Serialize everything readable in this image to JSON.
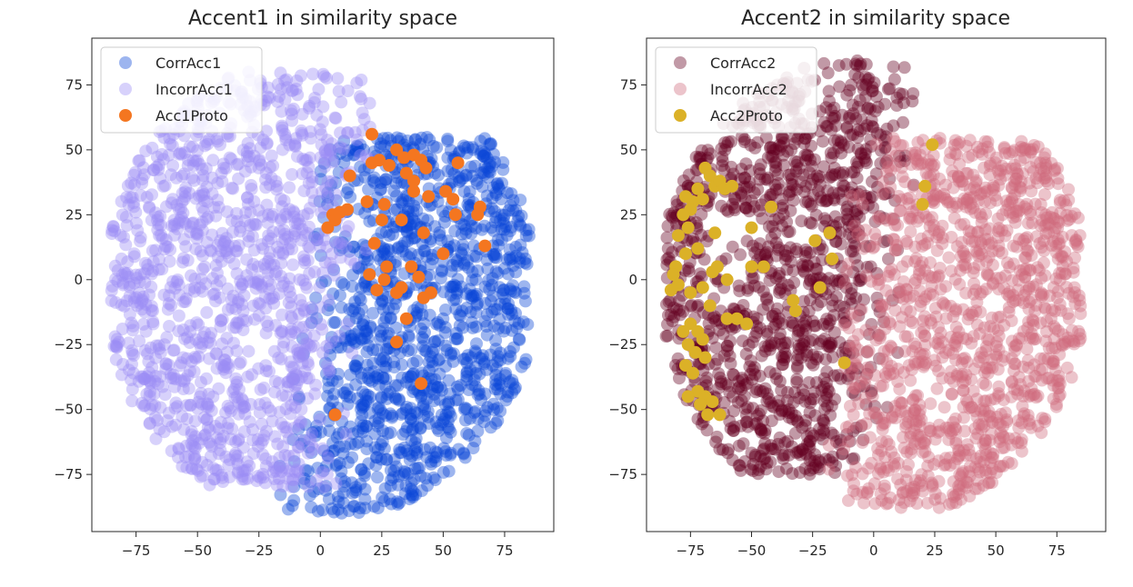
{
  "chart_data": [
    {
      "type": "scatter",
      "title": "Accent1 in similarity space",
      "xlabel": "",
      "ylabel": "",
      "xlim": [
        -93,
        95
      ],
      "ylim": [
        -97,
        93
      ],
      "xticks": [
        -75,
        -50,
        -25,
        0,
        25,
        50,
        75
      ],
      "yticks": [
        75,
        50,
        25,
        0,
        -25,
        -50,
        -75
      ],
      "xtick_labels": [
        "−75",
        "−50",
        "−25",
        "0",
        "25",
        "50",
        "75"
      ],
      "ytick_labels": [
        "75",
        "50",
        "25",
        "0",
        "−25",
        "−50",
        "−75"
      ],
      "grid": false,
      "legend_position": "top-left",
      "series": [
        {
          "name": "CorrAcc1",
          "color": "#0b46d8",
          "opacity": 0.4,
          "cloud": true,
          "region": {
            "x_range": [
              -25,
              85
            ],
            "y_range": [
              -90,
              55
            ],
            "side": "right",
            "split_x_at_y0": 5
          },
          "estimated_count": 1200
        },
        {
          "name": "IncorrAcc1",
          "color": "#9b8cf5",
          "opacity": 0.4,
          "cloud": true,
          "region": {
            "x_range": [
              -85,
              60
            ],
            "y_range": [
              -80,
              80
            ],
            "side": "left",
            "split_x_at_y0": 5
          },
          "estimated_count": 1200
        },
        {
          "name": "Acc1Proto",
          "color": "#f47620",
          "opacity": 1.0,
          "points": [
            [
              21,
              56
            ],
            [
              31,
              50
            ],
            [
              24,
              46
            ],
            [
              34,
              47
            ],
            [
              38,
              48
            ],
            [
              41,
              46
            ],
            [
              43,
              43
            ],
            [
              56,
              45
            ],
            [
              12,
              40
            ],
            [
              21,
              45
            ],
            [
              28,
              44
            ],
            [
              35,
              41
            ],
            [
              38,
              38
            ],
            [
              44,
              32
            ],
            [
              51,
              34
            ],
            [
              54,
              31
            ],
            [
              38,
              34
            ],
            [
              19,
              30
            ],
            [
              26,
              29
            ],
            [
              11,
              27
            ],
            [
              5,
              25
            ],
            [
              3,
              20
            ],
            [
              6,
              23
            ],
            [
              8,
              26
            ],
            [
              25,
              23
            ],
            [
              33,
              23
            ],
            [
              55,
              25
            ],
            [
              64,
              25
            ],
            [
              65,
              28
            ],
            [
              22,
              14
            ],
            [
              42,
              18
            ],
            [
              50,
              10
            ],
            [
              67,
              13
            ],
            [
              20,
              2
            ],
            [
              26,
              0
            ],
            [
              37,
              5
            ],
            [
              40,
              1
            ],
            [
              27,
              5
            ],
            [
              23,
              -4
            ],
            [
              31,
              -5
            ],
            [
              33,
              -3
            ],
            [
              42,
              -7
            ],
            [
              45,
              -5
            ],
            [
              35,
              -15
            ],
            [
              31,
              -24
            ],
            [
              41,
              -40
            ],
            [
              6,
              -52
            ]
          ]
        }
      ]
    },
    {
      "type": "scatter",
      "title": "Accent2 in similarity space",
      "xlabel": "",
      "ylabel": "",
      "xlim": [
        -93,
        95
      ],
      "ylim": [
        -97,
        93
      ],
      "xticks": [
        -75,
        -50,
        -25,
        0,
        25,
        50,
        75
      ],
      "yticks": [
        75,
        50,
        25,
        0,
        -25,
        -50,
        -75
      ],
      "xtick_labels": [
        "−75",
        "−50",
        "−25",
        "0",
        "25",
        "50",
        "75"
      ],
      "ytick_labels": [
        "75",
        "50",
        "25",
        "0",
        "−25",
        "−50",
        "−75"
      ],
      "grid": false,
      "legend_position": "top-left",
      "series": [
        {
          "name": "CorrAcc2",
          "color": "#650021",
          "opacity": 0.4,
          "cloud": true,
          "region": {
            "x_range": [
              -85,
              55
            ],
            "y_range": [
              -75,
              85
            ],
            "side": "left",
            "split_x_at_y0": 0
          },
          "estimated_count": 1200
        },
        {
          "name": "IncorrAcc2",
          "color": "#d06b7d",
          "opacity": 0.4,
          "cloud": true,
          "region": {
            "x_range": [
              -20,
              85
            ],
            "y_range": [
              -88,
              55
            ],
            "side": "right",
            "split_x_at_y0": 0
          },
          "estimated_count": 1200
        },
        {
          "name": "Acc2Proto",
          "color": "#dbb127",
          "opacity": 1.0,
          "points": [
            [
              -69,
              43
            ],
            [
              -67,
              40
            ],
            [
              -65,
              36
            ],
            [
              -63,
              38
            ],
            [
              -61,
              35
            ],
            [
              -58,
              36
            ],
            [
              -72,
              35
            ],
            [
              -74,
              30
            ],
            [
              -77,
              32
            ],
            [
              -75,
              27
            ],
            [
              -70,
              31
            ],
            [
              -78,
              25
            ],
            [
              -76,
              20
            ],
            [
              -80,
              17
            ],
            [
              -77,
              10
            ],
            [
              -81,
              5
            ],
            [
              -82,
              2
            ],
            [
              -80,
              -2
            ],
            [
              -83,
              -4
            ],
            [
              -75,
              -5
            ],
            [
              -70,
              -3
            ],
            [
              -66,
              3
            ],
            [
              -64,
              5
            ],
            [
              -60,
              0
            ],
            [
              -72,
              12
            ],
            [
              -75,
              -17
            ],
            [
              -78,
              -20
            ],
            [
              -72,
              -20
            ],
            [
              -70,
              -23
            ],
            [
              -76,
              -25
            ],
            [
              -73,
              -28
            ],
            [
              -69,
              -30
            ],
            [
              -77,
              -33
            ],
            [
              -74,
              -36
            ],
            [
              -72,
              -43
            ],
            [
              -76,
              -45
            ],
            [
              -69,
              -45
            ],
            [
              -66,
              -47
            ],
            [
              -71,
              -48
            ],
            [
              -63,
              -52
            ],
            [
              -68,
              -52
            ],
            [
              -67,
              -10
            ],
            [
              -60,
              -15
            ],
            [
              -56,
              -15
            ],
            [
              -52,
              -17
            ],
            [
              -50,
              5
            ],
            [
              -45,
              5
            ],
            [
              -42,
              28
            ],
            [
              -50,
              20
            ],
            [
              -65,
              18
            ],
            [
              -24,
              15
            ],
            [
              -18,
              18
            ],
            [
              -17,
              8
            ],
            [
              -22,
              -3
            ],
            [
              -33,
              -8
            ],
            [
              -32,
              -12
            ],
            [
              -12,
              -32
            ],
            [
              20,
              29
            ],
            [
              21,
              36
            ],
            [
              24,
              52
            ]
          ]
        }
      ]
    }
  ]
}
